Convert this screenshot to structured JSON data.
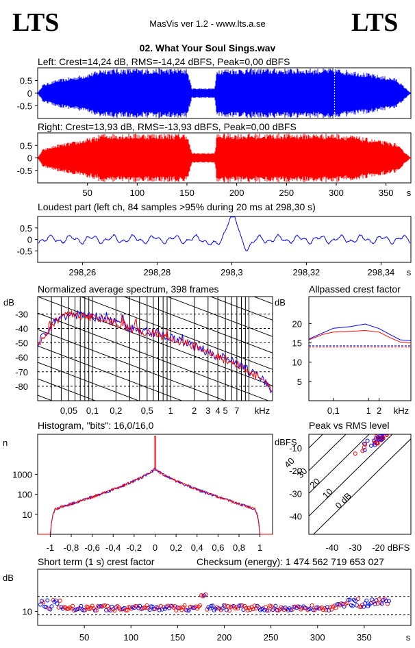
{
  "header": {
    "logo_left": "LTS",
    "logo_right": "LTS",
    "app_title": "MasVis ver 1.2 - www.lts.a.se",
    "file_name": "02. What Your Soul Sings.wav"
  },
  "colors": {
    "left": "#0000ff",
    "right": "#ff0000"
  },
  "chart_data": [
    {
      "id": "waveform-left",
      "type": "line",
      "channel": "left",
      "title": "Left: Crest=14,24 dB, RMS=-14,24 dBFS, Peak=0,00 dBFS",
      "crest_db": 14.24,
      "rms_dbfs": -14.24,
      "peak_dbfs": 0.0,
      "ylim": [
        -1,
        1
      ],
      "yticks": [
        "0.5",
        "0",
        "-0.5"
      ],
      "envelope_time_s": [
        0,
        5,
        20,
        40,
        60,
        63,
        100,
        150,
        155,
        178,
        180,
        300,
        320,
        360,
        375
      ],
      "envelope_amp": [
        0,
        0.35,
        0.55,
        0.7,
        0.9,
        1.0,
        1.0,
        1.0,
        0.2,
        0.2,
        1.0,
        1.0,
        0.9,
        0.6,
        0.0
      ]
    },
    {
      "id": "waveform-right",
      "type": "line",
      "channel": "right",
      "title": "Right: Crest=13,93 dB, RMS=-13,93 dBFS, Peak=0,00 dBFS",
      "crest_db": 13.93,
      "rms_dbfs": -13.93,
      "peak_dbfs": 0.0,
      "ylim": [
        -1,
        1
      ],
      "yticks": [
        "0.5",
        "0",
        "-0.5"
      ],
      "xticks": [
        "50",
        "100",
        "150",
        "200",
        "250",
        "300",
        "350",
        "s"
      ],
      "xtick_values": [
        50,
        100,
        150,
        200,
        250,
        300,
        350
      ],
      "xlim": [
        0,
        375
      ]
    },
    {
      "id": "loudest-part",
      "type": "line",
      "title": "Loudest part (left  ch, 84 samples >95% during 20 ms at 298,30 s)",
      "xlim": [
        298.248,
        298.348
      ],
      "xticks": [
        "298,26",
        "298,28",
        "298,3",
        "298,32",
        "298,34",
        "s"
      ],
      "xtick_values": [
        298.26,
        298.28,
        298.3,
        298.32,
        298.34
      ],
      "ylim": [
        -1,
        1
      ],
      "yticks": [
        "0.5",
        "0",
        "-0.5"
      ]
    },
    {
      "id": "spectrum",
      "type": "line",
      "title": "Normalized average spectrum, 398 frames",
      "ylabel": "dB",
      "xlabel": "kHz",
      "ylim": [
        -90,
        -18
      ],
      "yticks": [
        "-30",
        "-40",
        "-50",
        "-60",
        "-70",
        "-80"
      ],
      "ytick_values": [
        -30,
        -40,
        -50,
        -60,
        -70,
        -80
      ],
      "xticks": [
        "0,05",
        "0,1",
        "0,2",
        "0,5",
        "1",
        "2",
        "3",
        "4",
        "5",
        "7"
      ],
      "xtick_values": [
        0.05,
        0.1,
        0.2,
        0.5,
        1,
        2,
        3,
        4,
        5,
        7
      ],
      "xlim": [
        0.02,
        20
      ],
      "freq_khz": [
        0.02,
        0.03,
        0.04,
        0.05,
        0.07,
        0.1,
        0.15,
        0.2,
        0.3,
        0.5,
        0.7,
        1,
        2,
        3,
        5,
        7,
        10,
        15,
        20
      ],
      "level_db": [
        -50,
        -38,
        -32,
        -30,
        -31,
        -32,
        -34,
        -36,
        -40,
        -42,
        -44,
        -47,
        -52,
        -57,
        -61,
        -64,
        -70,
        -75,
        -85
      ]
    },
    {
      "id": "allpassed-crest",
      "type": "line",
      "title": "Allpassed crest factor",
      "ylabel": "dB",
      "xlabel": "kHz",
      "ylim": [
        0,
        27
      ],
      "yticks": [
        "20",
        "15",
        "10",
        "5"
      ],
      "ytick_values": [
        20,
        15,
        10,
        5
      ],
      "xticks": [
        "0,1",
        "1",
        "2"
      ],
      "xtick_values": [
        0.1,
        1,
        2
      ],
      "xlim": [
        0.02,
        16
      ],
      "x": [
        0.02,
        0.05,
        0.1,
        0.3,
        0.8,
        2,
        4,
        8,
        16
      ],
      "series": [
        {
          "name": "left",
          "values": [
            16.0,
            17.6,
            18.8,
            19.2,
            19.9,
            18.7,
            17.2,
            15.8,
            15.6
          ],
          "rms_line": 14.24
        },
        {
          "name": "right",
          "values": [
            15.8,
            17.2,
            17.8,
            18.0,
            18.2,
            17.8,
            16.4,
            15.2,
            15.0
          ],
          "rms_line": 13.93
        }
      ]
    },
    {
      "id": "histogram",
      "type": "line",
      "title": "Histogram, \"bits\": 16,0/16,0",
      "ylabel": "n",
      "yscale": "log",
      "ylim": [
        1,
        100000
      ],
      "yticks": [
        "1000",
        "100",
        "10"
      ],
      "ytick_values": [
        1000,
        100,
        10
      ],
      "xticks": [
        "-1",
        "-0,8",
        "-0,6",
        "-0,4",
        "-0,2",
        "0",
        "0,2",
        "0,4",
        "0,6",
        "0,8",
        "1"
      ],
      "xtick_values": [
        -1,
        -0.8,
        -0.6,
        -0.4,
        -0.2,
        0,
        0.2,
        0.4,
        0.6,
        0.8,
        1
      ],
      "xlim": [
        -1.12,
        1.12
      ]
    },
    {
      "id": "peak-vs-rms",
      "type": "scatter",
      "title": "Peak vs RMS level",
      "ylabel": "dBFS",
      "xlabel": "dBFS",
      "xlim": [
        -50,
        -6
      ],
      "ylim": [
        -48,
        -4
      ],
      "xticks": [
        "-40",
        "-30",
        "-20"
      ],
      "xtick_values": [
        -40,
        -30,
        -20
      ],
      "yticks": [
        "-10",
        "-20",
        "-30",
        "-40"
      ],
      "ytick_values": [
        -10,
        -20,
        -30,
        -40
      ],
      "diagonal_labels": [
        "40",
        "30",
        "20",
        "10",
        "0 dB"
      ],
      "diagonal_offsets": [
        40,
        30,
        20,
        10,
        0
      ]
    },
    {
      "id": "short-term-crest",
      "type": "scatter",
      "title": "Short term (1 s) crest factor",
      "checksum_label": "Checksum (energy):  1 474 562 719 653 027",
      "ylabel": "dB",
      "ylim": [
        6,
        22
      ],
      "yticks": [
        "10"
      ],
      "ytick_values": [
        10
      ],
      "xticks": [
        "50",
        "100",
        "150",
        "200",
        "250",
        "300",
        "350",
        "s"
      ],
      "xtick_values": [
        50,
        100,
        150,
        200,
        250,
        300,
        350
      ],
      "xlim": [
        0,
        400
      ]
    }
  ]
}
